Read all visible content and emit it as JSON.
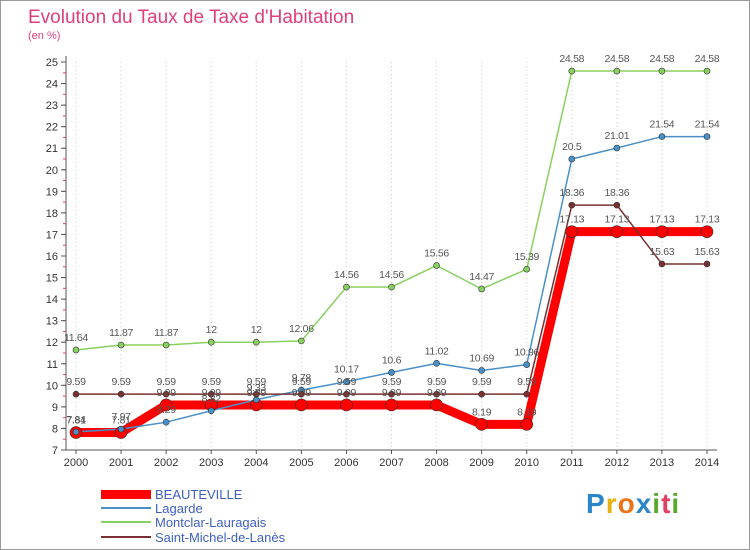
{
  "title": "Evolution du Taux de Taxe d'Habitation",
  "unit": "(en %)",
  "logo": {
    "letters": [
      "P",
      "r",
      "o",
      "x",
      "i",
      "t",
      "i"
    ],
    "colors": [
      "#2a86c8",
      "#e8b010",
      "#e8731a",
      "#2a86c8",
      "#5aa82e",
      "#e04060",
      "#5aa82e"
    ]
  },
  "chart_data": {
    "type": "line",
    "title": "Evolution du Taux de Taxe d'Habitation",
    "ylabel": "(en %)",
    "xlabel": "",
    "x": [
      "2000",
      "2001",
      "2002",
      "2003",
      "2004",
      "2005",
      "2006",
      "2007",
      "2008",
      "2009",
      "2010",
      "2011",
      "2012",
      "2013",
      "2014"
    ],
    "ylim": [
      7,
      25
    ],
    "yticks": [
      "7",
      "8",
      "9",
      "10",
      "11",
      "12",
      "13",
      "14",
      "15",
      "16",
      "17",
      "18",
      "19",
      "20",
      "21",
      "22",
      "23",
      "24",
      "25"
    ],
    "grid": "vertical dotted",
    "legend": "bottom-left",
    "series": [
      {
        "name": "BEAUTEVILLE",
        "color": "#ff0000",
        "values": [
          7.81,
          7.81,
          9.09,
          9.09,
          9.09,
          9.09,
          9.09,
          9.09,
          9.09,
          8.19,
          8.19,
          17.13,
          17.13,
          17.13,
          17.13
        ],
        "labels": [
          "7.81",
          "7.81",
          "9.09",
          "9.09",
          "9.09",
          "9.09",
          "9.09",
          "9.09",
          "9.09",
          "8.19",
          "8.19",
          "17.13",
          "17.13",
          "17.13",
          "17.13"
        ]
      },
      {
        "name": "Lagarde",
        "color": "#4a90c8",
        "values": [
          7.84,
          7.97,
          8.29,
          8.82,
          9.33,
          9.78,
          10.17,
          10.6,
          11.02,
          10.69,
          10.96,
          20.5,
          21.01,
          21.54,
          21.54
        ],
        "labels": [
          "7.84",
          "7.97",
          "8.29",
          "8.82",
          "9.33",
          "9.78",
          "10.17",
          "10.6",
          "11.02",
          "10.69",
          "10.96",
          "20.5",
          "21.01",
          "21.54",
          "21.54"
        ]
      },
      {
        "name": "Montclar-Lauragais",
        "color": "#88d060",
        "values": [
          11.64,
          11.87,
          11.87,
          12,
          12,
          12.06,
          14.56,
          14.56,
          15.56,
          14.47,
          15.39,
          24.58,
          24.58,
          24.58,
          24.58
        ],
        "labels": [
          "11.64",
          "11.87",
          "11.87",
          "12",
          "12",
          "12.06",
          "14.56",
          "14.56",
          "15.56",
          "14.47",
          "15.39",
          "24.58",
          "24.58",
          "24.58",
          "24.58"
        ]
      },
      {
        "name": "Saint-Michel-de-Lanès",
        "color": "#7a3030",
        "values": [
          9.59,
          9.59,
          9.59,
          9.59,
          9.59,
          9.59,
          9.59,
          9.59,
          9.59,
          9.59,
          9.59,
          18.36,
          18.36,
          15.63,
          15.63
        ],
        "labels": [
          "9.59",
          "9.59",
          "9.59",
          "9.59",
          "9.59",
          "9.59",
          "9.59",
          "9.59",
          "9.59",
          "9.59",
          "9.59",
          "18.36",
          "18.36",
          "15.63",
          "15.63"
        ]
      }
    ]
  }
}
